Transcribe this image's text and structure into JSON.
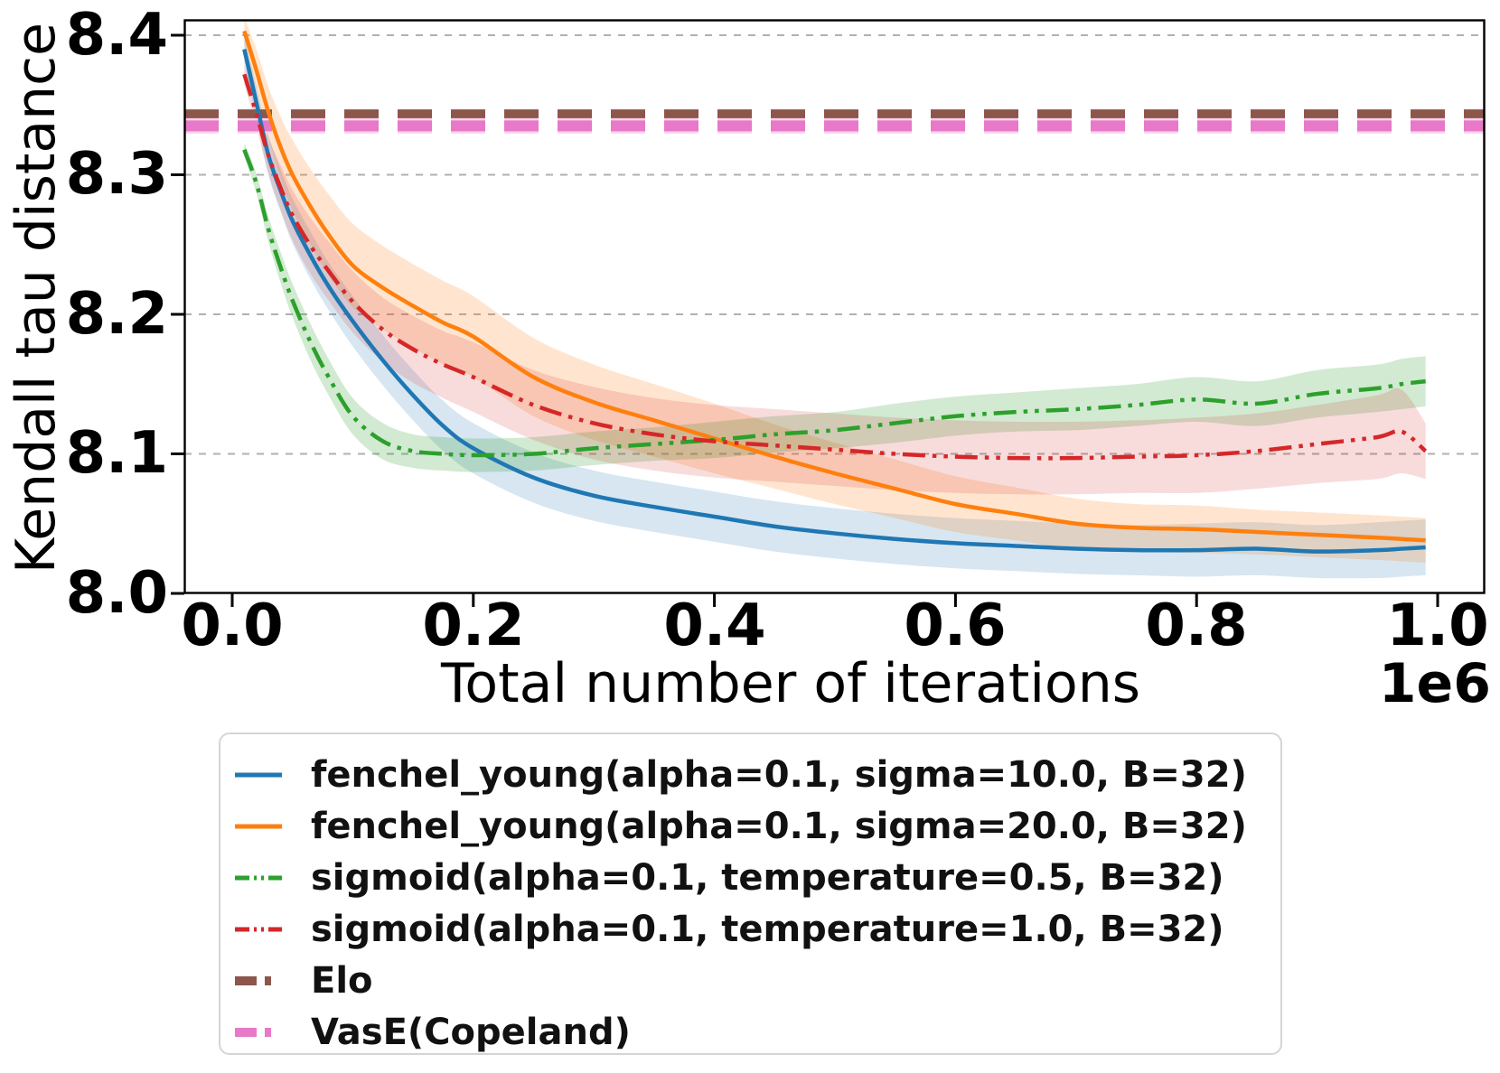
{
  "figure": {
    "ylabel": "Kendall tau distance",
    "xlabel": "Total number of iterations",
    "offset_label": "1e6",
    "background": "#ffffff",
    "spine_color": "#000000",
    "grid_color": "#b0b0b0"
  },
  "axes": {
    "xticks": [
      "0.0",
      "0.2",
      "0.4",
      "0.6",
      "0.8",
      "1.0"
    ],
    "yticks": [
      "8.0",
      "8.1",
      "8.2",
      "8.3",
      "8.4"
    ]
  },
  "legend": {
    "entries": [
      {
        "label": "fenchel_young(alpha=0.1, sigma=10.0, B=32)",
        "color": "#1f77b4",
        "style": "solid",
        "sample_stroke": 5
      },
      {
        "label": "fenchel_young(alpha=0.1, sigma=20.0, B=32)",
        "color": "#ff7f0e",
        "style": "solid",
        "sample_stroke": 5
      },
      {
        "label": "sigmoid(alpha=0.1, temperature=0.5, B=32)",
        "color": "#2ca02c",
        "style": "dashdot",
        "sample_stroke": 5
      },
      {
        "label": "sigmoid(alpha=0.1, temperature=1.0, B=32)",
        "color": "#d62728",
        "style": "dashdot",
        "sample_stroke": 5
      },
      {
        "label": "Elo",
        "color": "#8c564b",
        "style": "dashed",
        "sample_stroke": 10
      },
      {
        "label": "VasE(Copeland)",
        "color": "#e878c8",
        "style": "dashed",
        "sample_stroke": 10
      }
    ]
  },
  "chart_data": {
    "type": "line",
    "title": "",
    "xlabel": "Total number of iterations",
    "ylabel": "Kendall tau distance",
    "x_unit": "1e6",
    "xlim": [
      -0.04,
      1.04
    ],
    "ylim": [
      8.0,
      8.411
    ],
    "xtick_values": [
      0.0,
      0.2,
      0.4,
      0.6,
      0.8,
      1.0
    ],
    "ytick_values": [
      8.0,
      8.1,
      8.2,
      8.3,
      8.4
    ],
    "grid_yticks": [
      8.1,
      8.2,
      8.3,
      8.4
    ],
    "legend_position": "below",
    "grid": "y-dashed",
    "x": [
      0.01,
      0.02,
      0.03,
      0.04,
      0.05,
      0.065,
      0.08,
      0.1,
      0.125,
      0.15,
      0.175,
      0.2,
      0.25,
      0.3,
      0.35,
      0.4,
      0.45,
      0.5,
      0.55,
      0.6,
      0.65,
      0.7,
      0.75,
      0.8,
      0.85,
      0.9,
      0.95,
      0.97,
      0.99
    ],
    "series": [
      {
        "name": "fenchel_young(alpha=0.1, sigma=10.0, B=32)",
        "color": "#1f77b4",
        "style": "solid",
        "band_alpha": 0.18,
        "values": [
          8.39,
          8.352,
          8.314,
          8.289,
          8.267,
          8.242,
          8.22,
          8.195,
          8.167,
          8.142,
          8.12,
          8.104,
          8.083,
          8.07,
          8.062,
          8.055,
          8.048,
          8.043,
          8.039,
          8.036,
          8.034,
          8.032,
          8.031,
          8.031,
          8.032,
          8.03,
          8.031,
          8.032,
          8.033
        ],
        "band": [
          0.01,
          0.012,
          0.014,
          0.015,
          0.016,
          0.017,
          0.017,
          0.018,
          0.018,
          0.018,
          0.018,
          0.018,
          0.018,
          0.018,
          0.018,
          0.018,
          0.018,
          0.018,
          0.018,
          0.018,
          0.018,
          0.018,
          0.018,
          0.019,
          0.019,
          0.019,
          0.02,
          0.02,
          0.02
        ]
      },
      {
        "name": "fenchel_young(alpha=0.1, sigma=20.0, B=32)",
        "color": "#ff7f0e",
        "style": "solid",
        "band_alpha": 0.2,
        "values": [
          8.403,
          8.375,
          8.345,
          8.32,
          8.3,
          8.277,
          8.257,
          8.235,
          8.219,
          8.206,
          8.194,
          8.184,
          8.155,
          8.137,
          8.124,
          8.111,
          8.098,
          8.086,
          8.075,
          8.064,
          8.057,
          8.05,
          8.047,
          8.046,
          8.044,
          8.042,
          8.04,
          8.039,
          8.038
        ],
        "band": [
          0.01,
          0.015,
          0.018,
          0.022,
          0.025,
          0.027,
          0.029,
          0.03,
          0.03,
          0.03,
          0.03,
          0.029,
          0.028,
          0.027,
          0.026,
          0.025,
          0.023,
          0.022,
          0.021,
          0.02,
          0.019,
          0.018,
          0.017,
          0.017,
          0.016,
          0.016,
          0.016,
          0.016,
          0.016
        ]
      },
      {
        "name": "sigmoid(alpha=0.1, temperature=0.5, B=32)",
        "color": "#2ca02c",
        "style": "dashdot",
        "band_alpha": 0.22,
        "values": [
          8.318,
          8.294,
          8.261,
          8.234,
          8.21,
          8.18,
          8.155,
          8.127,
          8.109,
          8.102,
          8.1,
          8.099,
          8.1,
          8.104,
          8.107,
          8.11,
          8.114,
          8.117,
          8.122,
          8.127,
          8.13,
          8.132,
          8.135,
          8.139,
          8.136,
          8.143,
          8.147,
          8.15,
          8.152
        ],
        "band": [
          0.005,
          0.007,
          0.009,
          0.011,
          0.012,
          0.013,
          0.013,
          0.013,
          0.013,
          0.012,
          0.012,
          0.012,
          0.012,
          0.012,
          0.012,
          0.013,
          0.013,
          0.013,
          0.014,
          0.014,
          0.014,
          0.015,
          0.015,
          0.016,
          0.016,
          0.017,
          0.017,
          0.018,
          0.018
        ]
      },
      {
        "name": "sigmoid(alpha=0.1, temperature=1.0, B=32)",
        "color": "#d62728",
        "style": "dashdot",
        "band_alpha": 0.16,
        "values": [
          8.372,
          8.344,
          8.314,
          8.291,
          8.271,
          8.249,
          8.231,
          8.209,
          8.189,
          8.175,
          8.164,
          8.155,
          8.135,
          8.122,
          8.114,
          8.109,
          8.106,
          8.103,
          8.1,
          8.098,
          8.097,
          8.097,
          8.098,
          8.099,
          8.102,
          8.107,
          8.112,
          8.116,
          8.102
        ],
        "band": [
          0.007,
          0.01,
          0.013,
          0.016,
          0.018,
          0.02,
          0.021,
          0.022,
          0.023,
          0.024,
          0.024,
          0.025,
          0.025,
          0.026,
          0.026,
          0.026,
          0.026,
          0.026,
          0.026,
          0.026,
          0.026,
          0.026,
          0.026,
          0.027,
          0.027,
          0.028,
          0.03,
          0.03,
          0.02
        ]
      },
      {
        "name": "Elo",
        "color": "#8c564b",
        "style": "dashed",
        "constant": 8.343
      },
      {
        "name": "VasE(Copeland)",
        "color": "#e878c8",
        "style": "dashed",
        "constant": 8.335,
        "halo_color": "#fad4ec"
      }
    ]
  }
}
